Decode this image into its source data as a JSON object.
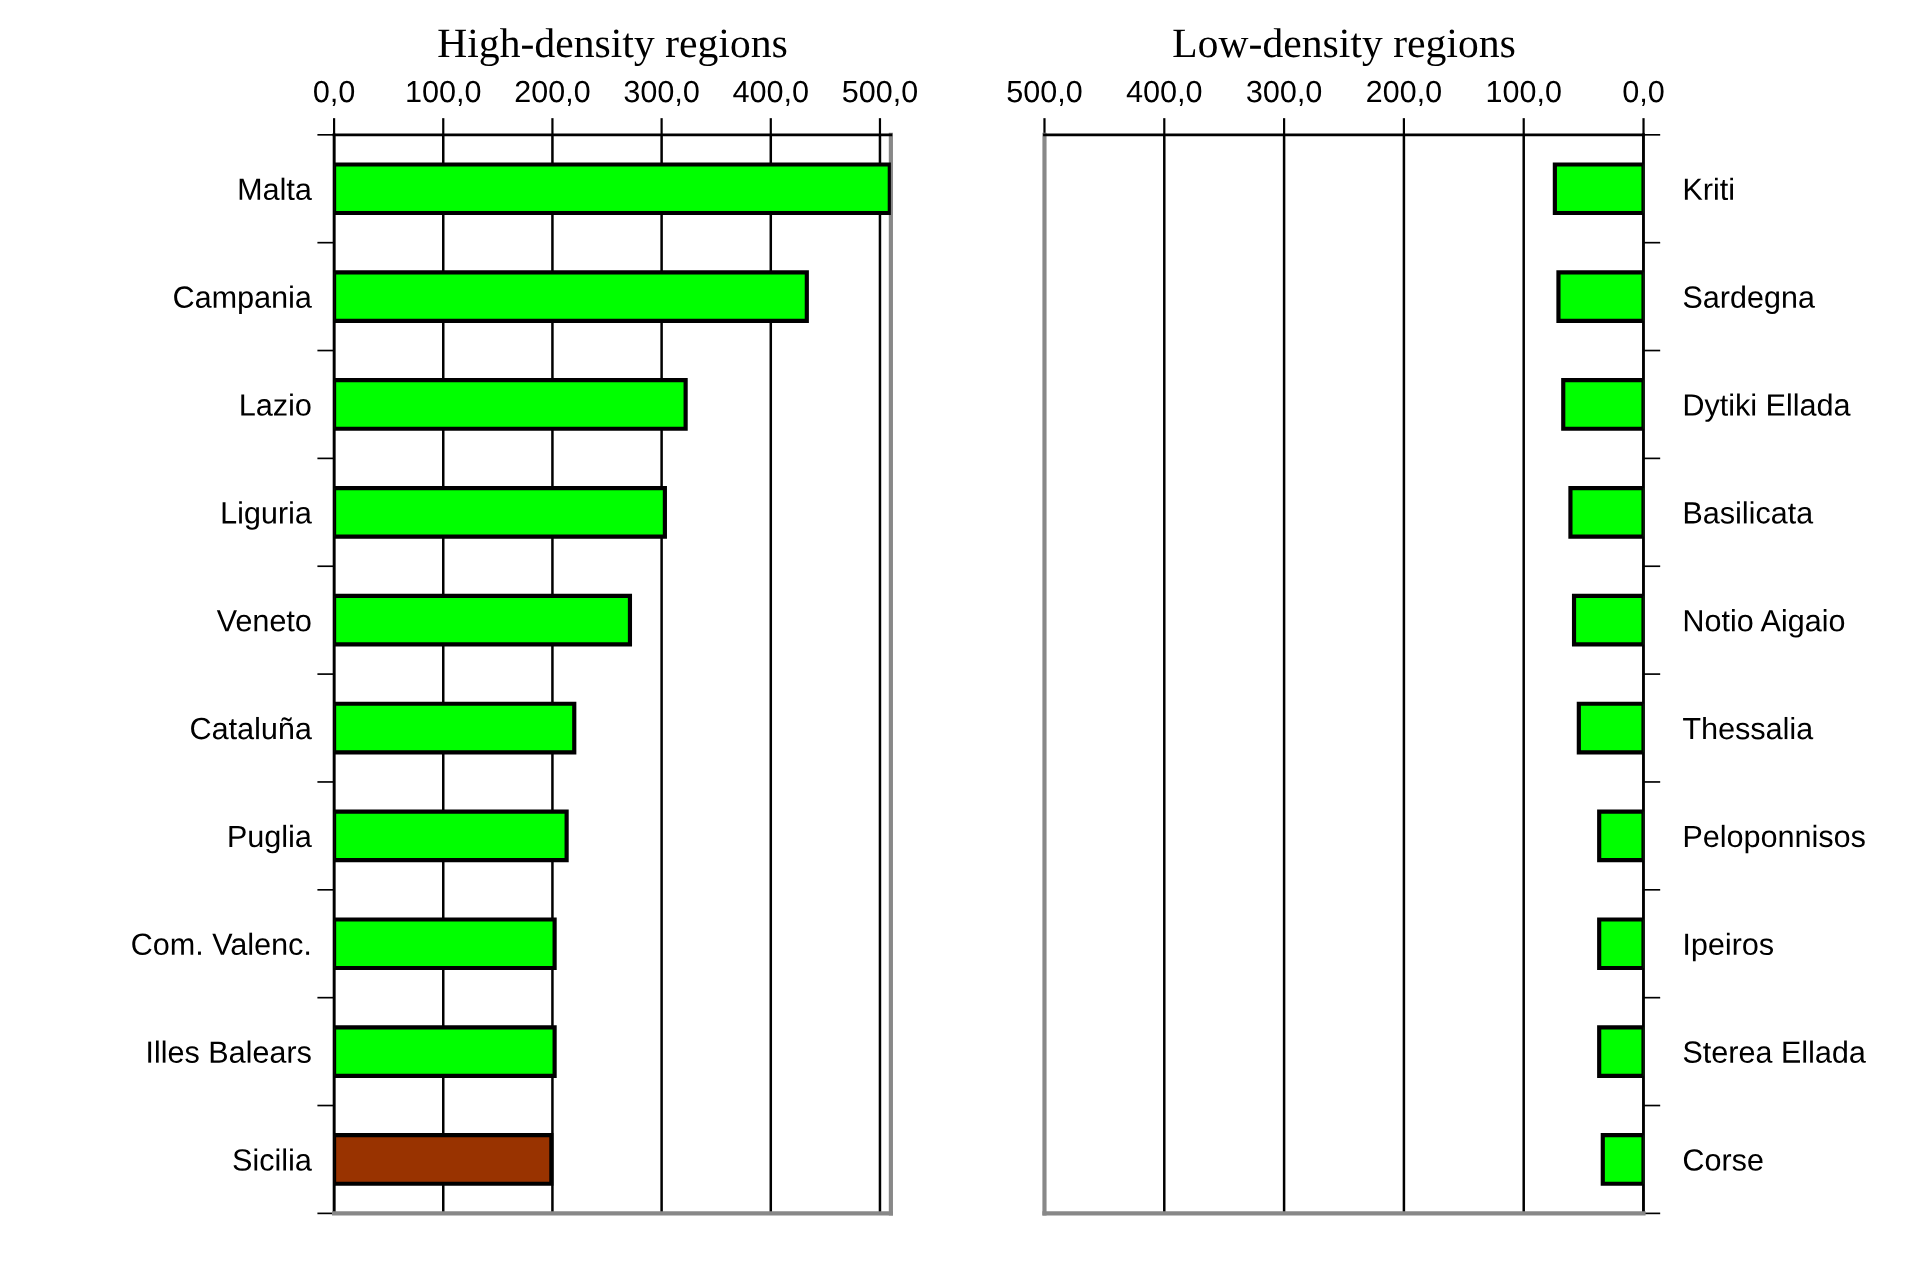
{
  "chart_data": [
    {
      "type": "bar",
      "orientation": "horizontal",
      "title": "High-density regions",
      "categories": [
        "Malta",
        "Campania",
        "Lazio",
        "Liguria",
        "Veneto",
        "Cataluña",
        "Puglia",
        "Com. Valenc.",
        "Illes Balears",
        "Sicilia"
      ],
      "values": [
        509,
        433,
        322,
        303,
        271,
        220,
        213,
        202,
        202,
        199
      ],
      "colors": [
        "#00ff00",
        "#00ff00",
        "#00ff00",
        "#00ff00",
        "#00ff00",
        "#00ff00",
        "#00ff00",
        "#00ff00",
        "#00ff00",
        "#993300"
      ],
      "xlim": [
        0,
        510
      ],
      "xticks": [
        {
          "value": 0,
          "label": "0,0"
        },
        {
          "value": 100,
          "label": "100,0"
        },
        {
          "value": 200,
          "label": "200,0"
        },
        {
          "value": 300,
          "label": "300,0"
        },
        {
          "value": 400,
          "label": "400,0"
        },
        {
          "value": 500,
          "label": "500,0"
        }
      ],
      "grid": "x"
    },
    {
      "type": "bar",
      "orientation": "horizontal",
      "title": "Low-density regions",
      "categories": [
        "Kriti",
        "Sardegna",
        "Dytiki Ellada",
        "Basilicata",
        "Notio Aigaio",
        "Thessalia",
        "Peloponnisos",
        "Ipeiros",
        "Sterea Ellada",
        "Corse"
      ],
      "values": [
        74,
        71,
        67,
        61,
        58,
        54,
        37,
        37,
        37,
        34
      ],
      "colors": [
        "#00ff00",
        "#00ff00",
        "#00ff00",
        "#00ff00",
        "#00ff00",
        "#00ff00",
        "#00ff00",
        "#00ff00",
        "#00ff00",
        "#00ff00"
      ],
      "xlim": [
        500,
        0
      ],
      "xticks": [
        {
          "value": 500,
          "label": "500,0"
        },
        {
          "value": 400,
          "label": "400,0"
        },
        {
          "value": 300,
          "label": "300,0"
        },
        {
          "value": 200,
          "label": "200,0"
        },
        {
          "value": 100,
          "label": "100,0"
        },
        {
          "value": 0,
          "label": "0,0"
        }
      ],
      "grid": "x"
    }
  ]
}
